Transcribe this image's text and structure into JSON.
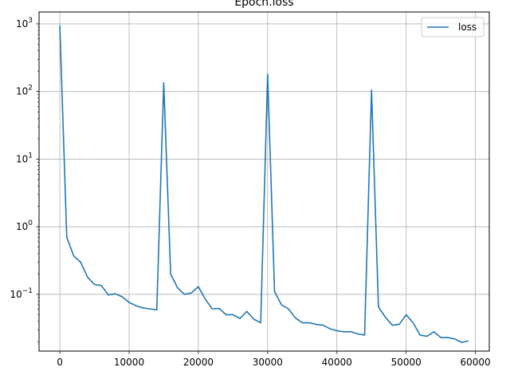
{
  "chart_data": {
    "type": "line",
    "title": "Epoch.loss",
    "xlabel": "",
    "ylabel": "",
    "xlim": [
      -3000,
      62000
    ],
    "ylim": [
      0.0145,
      1500
    ],
    "yscale": "log",
    "grid": true,
    "legend_position": "top-right",
    "colors": {
      "series": "#1f77b4",
      "grid": "#b0b0b0"
    },
    "x_ticks": [
      0,
      10000,
      20000,
      30000,
      40000,
      50000,
      60000
    ],
    "y_ticks": [
      {
        "value": 0.1,
        "base": "10",
        "exp": "−1"
      },
      {
        "value": 1,
        "base": "10",
        "exp": "0"
      },
      {
        "value": 10,
        "base": "10",
        "exp": "1"
      },
      {
        "value": 100,
        "base": "10",
        "exp": "2"
      },
      {
        "value": 1000,
        "base": "10",
        "exp": "3"
      }
    ],
    "series": [
      {
        "name": "loss",
        "x": [
          0,
          1000,
          2000,
          3000,
          4000,
          5000,
          6000,
          7000,
          8000,
          9000,
          10000,
          11000,
          12000,
          13000,
          14000,
          15000,
          16000,
          17000,
          18000,
          19000,
          20000,
          21000,
          22000,
          23000,
          24000,
          25000,
          26000,
          27000,
          28000,
          29000,
          30000,
          31000,
          32000,
          33000,
          34000,
          35000,
          36000,
          37000,
          38000,
          39000,
          40000,
          41000,
          42000,
          43000,
          44000,
          45000,
          46000,
          47000,
          48000,
          49000,
          50000,
          51000,
          52000,
          53000,
          54000,
          55000,
          56000,
          57000,
          58000,
          59000
        ],
        "values": [
          950,
          0.7,
          0.37,
          0.3,
          0.18,
          0.14,
          0.135,
          0.098,
          0.102,
          0.092,
          0.076,
          0.068,
          0.063,
          0.061,
          0.059,
          135,
          0.2,
          0.125,
          0.1,
          0.105,
          0.13,
          0.085,
          0.061,
          0.062,
          0.05,
          0.05,
          0.044,
          0.056,
          0.043,
          0.038,
          180,
          0.11,
          0.07,
          0.061,
          0.045,
          0.038,
          0.038,
          0.036,
          0.035,
          0.031,
          0.029,
          0.028,
          0.028,
          0.026,
          0.025,
          105,
          0.065,
          0.046,
          0.035,
          0.036,
          0.05,
          0.038,
          0.025,
          0.024,
          0.028,
          0.023,
          0.023,
          0.022,
          0.0195,
          0.0205
        ]
      }
    ]
  }
}
